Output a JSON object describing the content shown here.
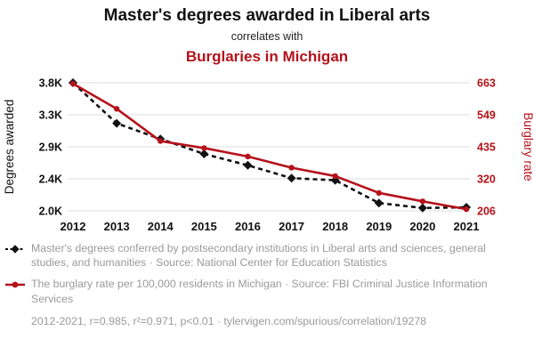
{
  "header": {
    "title": "Master's degrees awarded in Liberal arts",
    "subtitle": "correlates with",
    "title2": "Burglaries in Michigan"
  },
  "chart_data": {
    "type": "line",
    "x": [
      "2012",
      "2013",
      "2014",
      "2015",
      "2016",
      "2017",
      "2018",
      "2019",
      "2020",
      "2021"
    ],
    "series": [
      {
        "name": "Master's degrees awarded in Liberal arts",
        "axis": "left",
        "color": "#111111",
        "style": "dashed",
        "marker": "diamond",
        "values": [
          3800,
          3230,
          3010,
          2800,
          2640,
          2460,
          2430,
          2110,
          2040,
          2050
        ]
      },
      {
        "name": "Burglaries in Michigan",
        "axis": "right",
        "color": "#b5121b",
        "style": "solid",
        "marker": "circle",
        "values": [
          660,
          570,
          455,
          430,
          400,
          360,
          330,
          270,
          240,
          212
        ]
      }
    ],
    "left_axis": {
      "label": "Degrees awarded",
      "ticks": [
        "3.8K",
        "3.3K",
        "2.9K",
        "2.4K",
        "2.0K"
      ],
      "range": [
        2000,
        3800
      ]
    },
    "right_axis": {
      "label": "Burglary rate",
      "ticks": [
        "663",
        "549",
        "435",
        "320",
        "206"
      ],
      "range": [
        206,
        663
      ]
    },
    "grid": true,
    "legend_position": "bottom"
  },
  "legend": {
    "item1": {
      "text": "Master's degrees conferred by postsecondary institutions in Liberal arts and sciences, general studies, and humanities · Source: National Center for Education Statistics",
      "color": "#111111"
    },
    "item2": {
      "text": "The burglary rate per 100,000 residents in Michigan · Source: FBI Criminal Justice Information Services",
      "color": "#b5121b"
    },
    "footer": "2012-2021, r=0.985, r²=0.971, p<0.01 · tylervigen.com/spurious/correlation/19278"
  },
  "colors": {
    "accent_red": "#b5121b",
    "text_black": "#111111",
    "grid": "#dedede",
    "legend_text": "#9a9a9a"
  }
}
